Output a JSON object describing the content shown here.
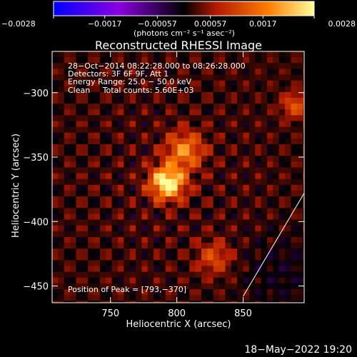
{
  "chart_data": {
    "type": "heatmap",
    "title": "Reconstructed RHESSI Image",
    "xlabel": "Heliocentric X (arcsec)",
    "ylabel": "Heliocentric Y (arcsec)",
    "xlim": [
      706,
      896
    ],
    "ylim": [
      -463,
      -268
    ],
    "x_ticks": [
      750,
      800,
      850
    ],
    "x_tick_labels": [
      "750",
      "800",
      "850"
    ],
    "y_ticks": [
      -300,
      -350,
      -400,
      -450
    ],
    "y_tick_labels": [
      "−300",
      "−350",
      "−400",
      "−450"
    ],
    "colorbar": {
      "range": [
        -0.0028,
        0.0028
      ],
      "ticks": [
        -0.0028,
        -0.0017,
        -0.00057,
        0.00057,
        0.0017,
        0.0028
      ],
      "tick_labels": [
        "−0.0028",
        "−0.0017",
        "−0.00057",
        "0.00057",
        "0.0017",
        "0.0028"
      ],
      "units_label": "(photons cm⁻² s⁻¹ asec⁻²)",
      "colormap": [
        "#0000ff",
        "#8a00e0",
        "#000000",
        "#b01800",
        "#ff7a00",
        "#ffff99"
      ]
    },
    "annotations": [
      "28−Oct−2014 08:22:28.000 to 08:26:28.000",
      "Detectors: 3F 6F 9F, Att 1",
      "Energy Range: 25.0 − 50.0 keV",
      "Clean     Total counts: 5.60E+03"
    ],
    "peak_label": "Position of Peak = [793,−370]",
    "peak": {
      "x": 793,
      "y": -370,
      "value": 0.0028
    },
    "secondary_sources": [
      {
        "x": 806,
        "y": -345,
        "value": 0.0016
      },
      {
        "x": 828,
        "y": -428,
        "value": 0.001
      },
      {
        "x": 889,
        "y": -310,
        "value": 0.0011
      }
    ],
    "limb_line": [
      [
        850,
        -458
      ],
      [
        896,
        -378
      ]
    ],
    "date_stamp": "18−May−2022 19:20"
  }
}
